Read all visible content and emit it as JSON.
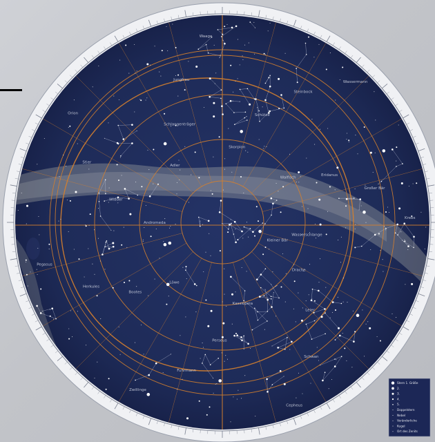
{
  "mark": "",
  "colors": {
    "sky": "#1f2c5a",
    "sky_dark": "#17214a",
    "rim": "#f2f3f6",
    "grid": "#d5802e",
    "stars": "#ffffff",
    "milky_way": "#c9c8b8",
    "page": "#c4c6cb"
  },
  "legend": {
    "rows": [
      "Stern 1. Größe",
      "2.",
      "3.",
      "4.",
      "5.",
      "Doppelstern",
      "Nebel",
      "Veränderliche",
      "Kugel",
      "Ort des Zenits"
    ]
  },
  "constellation_labels": [
    "Kleiner Bär",
    "Drache",
    "Leier",
    "Schwan",
    "Cepheus",
    "Kassiopeia",
    "Perseus",
    "Fuhrmann",
    "Zwillinge",
    "Löwe",
    "Bootes",
    "Herkules",
    "Pegasus",
    "Andromeda",
    "Widder",
    "Stier",
    "Orion",
    "Adler",
    "Schlangenträger",
    "Jungfrau",
    "Waage",
    "Skorpion",
    "Schütze",
    "Steinbock",
    "Wassermann",
    "Walfisch",
    "Eridanus",
    "Großer Bär",
    "Krebs",
    "Wasserschlange"
  ]
}
